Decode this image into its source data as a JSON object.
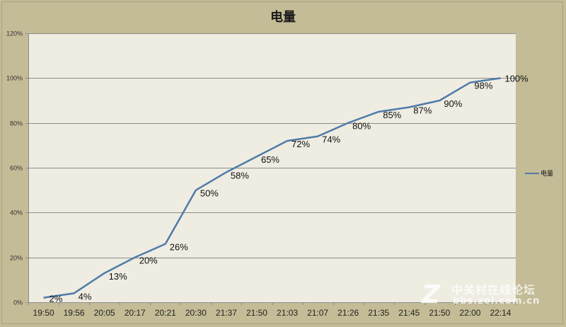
{
  "chart_data": {
    "type": "line",
    "title": "电量",
    "xlabel": "",
    "ylabel": "",
    "categories": [
      "19:50",
      "19:56",
      "20:05",
      "20:17",
      "20:21",
      "20:30",
      "21:37",
      "21:50",
      "21:03",
      "21:07",
      "21:26",
      "21:35",
      "21:45",
      "21:50",
      "22:00",
      "22:14"
    ],
    "series": [
      {
        "name": "电量",
        "color": "#4f7ba8",
        "values": [
          2,
          4,
          13,
          20,
          26,
          50,
          58,
          65,
          72,
          74,
          80,
          85,
          87,
          90,
          98,
          100
        ],
        "data_labels": [
          "2%",
          "4%",
          "13%",
          "20%",
          "26%",
          "50%",
          "58%",
          "65%",
          "72%",
          "74%",
          "80%",
          "85%",
          "87%",
          "90%",
          "98%",
          "100%"
        ]
      }
    ],
    "y_ticks": [
      "0%",
      "20%",
      "40%",
      "60%",
      "80%",
      "100%",
      "120%"
    ],
    "ylim": [
      0,
      120
    ],
    "grid": true,
    "legend_position": "right"
  },
  "colors": {
    "outer_background": "#c4bc96",
    "plot_background": "#efece2",
    "gridline": "#8c8c8c",
    "line": "#4f7ba8"
  },
  "watermark": {
    "cn": "中关村在线论坛",
    "url": "bbs.zol.com.cn"
  }
}
